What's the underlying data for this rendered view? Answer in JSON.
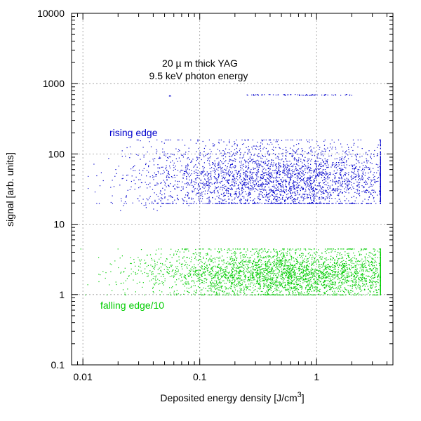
{
  "chart_data": {
    "type": "scatter",
    "xscale": "log",
    "yscale": "log",
    "xlim": [
      0.008,
      4.5
    ],
    "ylim": [
      0.1,
      10000
    ],
    "xlabel": "Deposited energy density [J/cm",
    "xlabel_sup": "3",
    "xlabel_suffix": "]",
    "ylabel": "signal [arb. units]",
    "grid": true,
    "x_tick_labels": [
      "0.01",
      "0.1",
      "1"
    ],
    "y_tick_labels": [
      "0.1",
      "1",
      "10",
      "100",
      "1000",
      "10000"
    ],
    "annotations": {
      "title_line1": "20  µ m thick YAG",
      "title_line2": "9.5 keV photon energy"
    },
    "series": [
      {
        "name": "rising edge",
        "color": "#0000cc",
        "clusters": [
          {
            "x_range": [
              0.011,
              3.5
            ],
            "y_range": [
              20,
              160
            ],
            "center": [
              0.5,
              45
            ],
            "count": 3200
          },
          {
            "x_range": [
              0.02,
              0.08
            ],
            "y_range": [
              15,
              120
            ],
            "count": 60
          },
          {
            "x_range": [
              0.25,
              2.0
            ],
            "y": 700,
            "count": 70
          },
          {
            "x": 0.055,
            "y": 680,
            "count": 3
          }
        ]
      },
      {
        "name": "falling edge/10",
        "color": "#00cc00",
        "clusters": [
          {
            "x_range": [
              0.009,
              3.5
            ],
            "y_range": [
              1.0,
              4.5
            ],
            "center": [
              0.6,
              2.0
            ],
            "count": 3800
          }
        ]
      }
    ]
  }
}
